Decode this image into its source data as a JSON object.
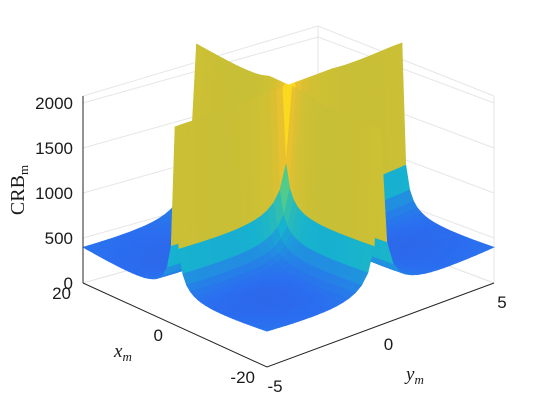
{
  "chart_data": {
    "type": "surface",
    "title": "",
    "zlabel": {
      "main": "CRB",
      "sub": "m"
    },
    "xlabel": {
      "main": "x",
      "sub": "m"
    },
    "ylabel": {
      "main": "y",
      "sub": "m"
    },
    "x_ticks": [
      "20",
      "0",
      "-20"
    ],
    "y_ticks": [
      "-5",
      "0",
      "5"
    ],
    "z_ticks": [
      "0",
      "500",
      "1000",
      "1500",
      "2000"
    ],
    "xlim": [
      -20,
      20
    ],
    "ylim": [
      -5,
      5
    ],
    "zlim": [
      0,
      2200
    ],
    "grid": true,
    "colormap": [
      "#3e26a8",
      "#2b6ef0",
      "#17b2cf",
      "#4fcb8d",
      "#c1bf37",
      "#fac22c",
      "#f9f80e"
    ],
    "surface_description_values": {
      "ridge_y": 0,
      "ridge_x": 0,
      "peak_crb": 2200,
      "min_crb": 0
    }
  }
}
